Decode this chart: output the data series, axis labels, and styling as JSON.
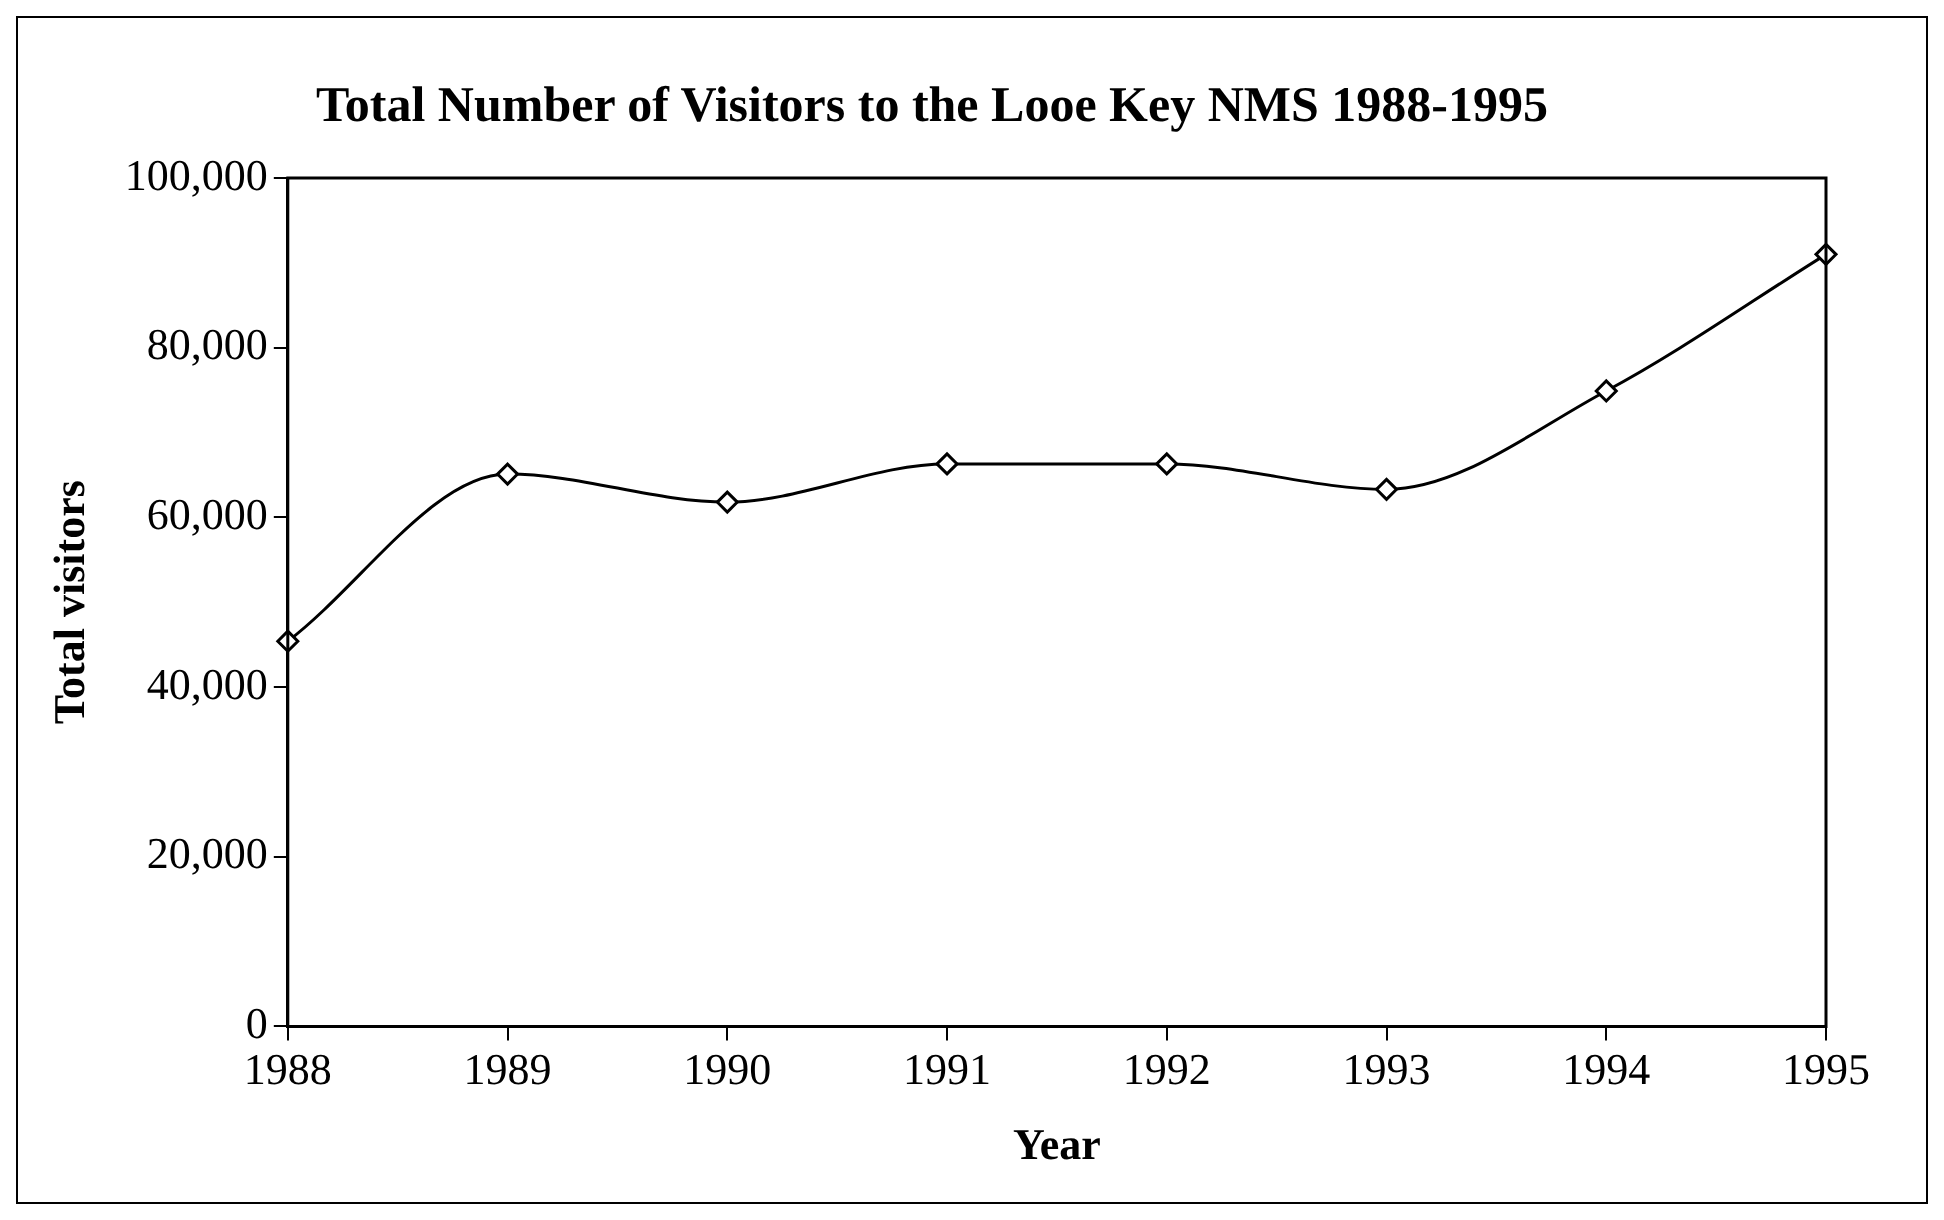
{
  "chart_data": {
    "type": "line",
    "title": "Total Number of Visitors to the Looe Key NMS 1988-1995",
    "xlabel": "Year",
    "ylabel": "Total visitors",
    "categories": [
      "1988",
      "1989",
      "1990",
      "1991",
      "1992",
      "1993",
      "1994",
      "1995"
    ],
    "series": [
      {
        "color": "#000000",
        "values": [
          45400,
          65100,
          61800,
          66300,
          66300,
          63300,
          74900,
          91000
        ]
      }
    ],
    "ylim": [
      0,
      100000
    ],
    "yticks": [
      {
        "value": 0,
        "label": "0"
      },
      {
        "value": 20000,
        "label": "20,000"
      },
      {
        "value": 40000,
        "label": "40,000"
      },
      {
        "value": 60000,
        "label": "60,000"
      },
      {
        "value": 80000,
        "label": "80,000"
      },
      {
        "value": 100000,
        "label": "100,000"
      }
    ],
    "grid": false,
    "legend": false,
    "marker": "diamond",
    "line_style": "solid"
  }
}
